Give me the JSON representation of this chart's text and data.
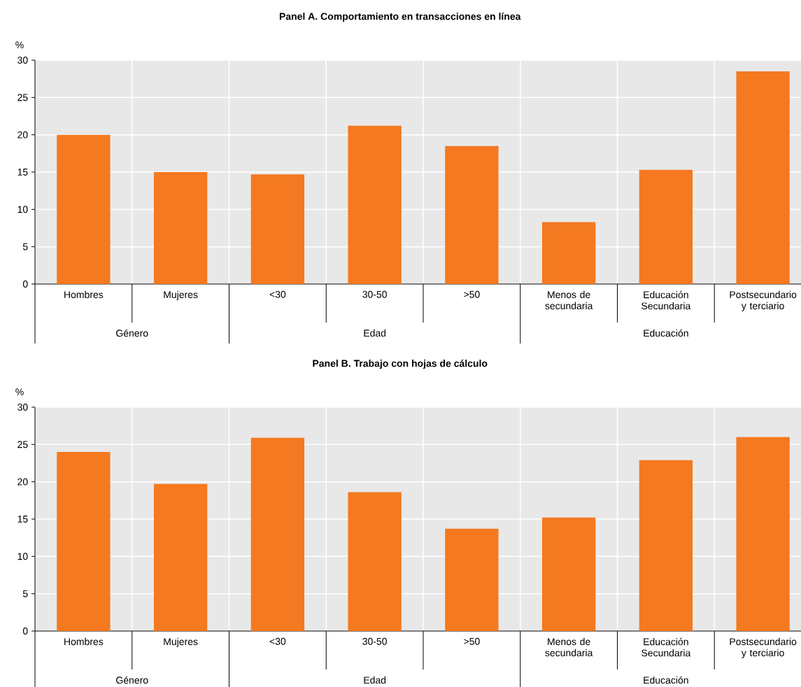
{
  "chart_data": [
    {
      "type": "bar",
      "title": "Panel A. Comportamiento en transacciones en línea",
      "ylabel": "%",
      "categories": [
        "Hombres",
        "Mujeres",
        "<30",
        "30-50",
        ">50",
        "Menos de secundaria",
        "Educación Secundaria",
        "Postsecundario y terciario"
      ],
      "values": [
        20.0,
        15.0,
        14.7,
        21.2,
        18.5,
        8.3,
        15.3,
        28.5
      ],
      "color": "#f47920",
      "ylim": [
        0,
        30
      ],
      "yticks": [
        0,
        5,
        10,
        15,
        20,
        25,
        30
      ],
      "grid": true,
      "annotations": [
        "Género",
        "Edad",
        "Educación"
      ]
    },
    {
      "type": "bar",
      "title": "Panel B. Trabajo con hojas de cálculo",
      "ylabel": "%",
      "categories": [
        "Hombres",
        "Mujeres",
        "<30",
        "30-50",
        ">50",
        "Menos de secundaria",
        "Educación Secundaria",
        "Postsecundario y terciario"
      ],
      "values": [
        24.0,
        19.7,
        25.9,
        18.6,
        13.7,
        15.2,
        22.9,
        26.0
      ],
      "color": "#f47920",
      "ylim": [
        0,
        30
      ],
      "yticks": [
        0,
        5,
        10,
        15,
        20,
        25,
        30
      ],
      "grid": true,
      "annotations": [
        "Género",
        "Edad",
        "Educación"
      ]
    }
  ]
}
